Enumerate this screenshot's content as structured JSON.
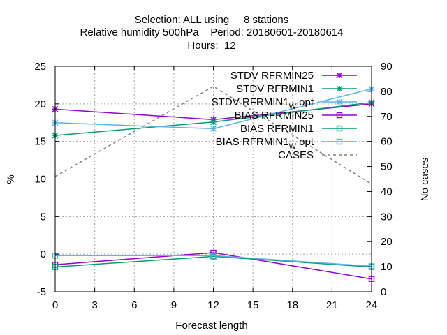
{
  "title_lines": [
    "Selection: ALL using     8 stations",
    "Relative humidity 500hPa    Period: 20180601-20180614",
    "Hours:  12"
  ],
  "chart_data": {
    "type": "line",
    "title": "Selection: ALL using     8 stations / Relative humidity 500hPa    Period: 20180601-20180614 / Hours:  12",
    "xlabel": "Forecast length",
    "ylabel": "%",
    "y2label": "No cases",
    "xlim": [
      0,
      24
    ],
    "ylim": [
      -5,
      25
    ],
    "y2lim": [
      0,
      90
    ],
    "xticks": [
      "0",
      "3",
      "6",
      "9",
      "12",
      "15",
      "18",
      "21",
      "24"
    ],
    "yticks": [
      "-5",
      "0",
      "5",
      "10",
      "15",
      "20",
      "25"
    ],
    "y2ticks": [
      "0",
      "10",
      "20",
      "30",
      "40",
      "50",
      "60",
      "70",
      "80",
      "90"
    ],
    "grid": true,
    "legend_position": "top-right",
    "series": [
      {
        "name": "STDV RFRMIN25",
        "axis": "y1",
        "color": "#9400d3",
        "marker": "star",
        "dash": false,
        "points": [
          [
            0,
            19.3
          ],
          [
            12,
            17.9
          ],
          [
            24,
            20.0
          ]
        ]
      },
      {
        "name": "STDV RFRMIN1",
        "axis": "y1",
        "color": "#009e73",
        "marker": "star",
        "dash": false,
        "points": [
          [
            0,
            15.8
          ],
          [
            12,
            17.6
          ],
          [
            24,
            20.2
          ]
        ]
      },
      {
        "name": "STDV RFRMIN1_W opt",
        "axis": "y1",
        "color": "#56b4e9",
        "marker": "star",
        "dash": false,
        "points": [
          [
            0,
            17.5
          ],
          [
            12,
            16.7
          ],
          [
            24,
            22.0
          ]
        ]
      },
      {
        "name": "BIAS RFRMIN25",
        "axis": "y1",
        "color": "#9400d3",
        "marker": "square",
        "dash": false,
        "points": [
          [
            0,
            -1.4
          ],
          [
            12,
            0.2
          ],
          [
            24,
            -3.3
          ]
        ]
      },
      {
        "name": "BIAS RFRMIN1",
        "axis": "y1",
        "color": "#009e73",
        "marker": "square",
        "dash": false,
        "points": [
          [
            0,
            -1.7
          ],
          [
            12,
            -0.3
          ],
          [
            24,
            -1.7
          ]
        ]
      },
      {
        "name": "BIAS RFRMIN1_W opt",
        "axis": "y1",
        "color": "#56b4e9",
        "marker": "square",
        "dash": false,
        "points": [
          [
            0,
            -0.2
          ],
          [
            12,
            -0.2
          ],
          [
            24,
            -1.6
          ]
        ]
      },
      {
        "name": "CASES",
        "axis": "y2",
        "color": "#808080",
        "marker": "none",
        "dash": true,
        "points": [
          [
            0,
            46
          ],
          [
            12,
            82
          ],
          [
            24,
            43
          ]
        ]
      }
    ]
  },
  "legend": {
    "entries": [
      {
        "main": "STDV RFRMIN25",
        "sub": "",
        "suffix": ""
      },
      {
        "main": "STDV RFRMIN1",
        "sub": "",
        "suffix": ""
      },
      {
        "main": "STDV RFRMIN1",
        "sub": "W",
        "suffix": " opt"
      },
      {
        "main": "BIAS RFRMIN25",
        "sub": "",
        "suffix": ""
      },
      {
        "main": "BIAS RFRMIN1",
        "sub": "",
        "suffix": ""
      },
      {
        "main": "BIAS RFRMIN1",
        "sub": "W",
        "suffix": " opt"
      },
      {
        "main": "CASES",
        "sub": "",
        "suffix": ""
      }
    ]
  }
}
